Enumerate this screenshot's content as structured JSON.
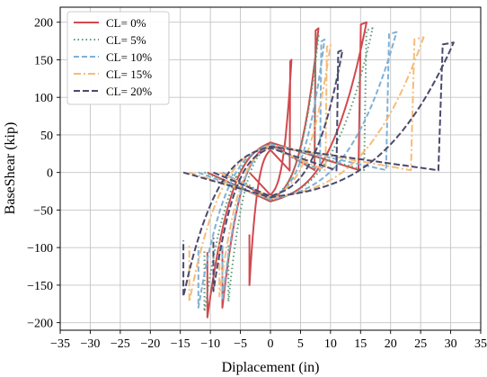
{
  "chart_data": {
    "type": "line",
    "title": "",
    "xlabel": "Diplacement (in)",
    "ylabel": "BaseShear (kip)",
    "xlim": [
      -35,
      35
    ],
    "ylim": [
      -210,
      220
    ],
    "xticks": [
      -35,
      -30,
      -25,
      -20,
      -15,
      -10,
      -5,
      0,
      5,
      10,
      15,
      20,
      25,
      30,
      35
    ],
    "yticks": [
      -200,
      -150,
      -100,
      -50,
      0,
      50,
      100,
      150,
      200
    ],
    "grid": true,
    "legend_position": "top-left",
    "series": [
      {
        "name": "CL= 0%",
        "color": "#d1494e",
        "dash": "solid",
        "loops": [
          {
            "dmax": 16,
            "dmin": -10.5,
            "fmax": 200,
            "fmin": -193
          },
          {
            "dmax": 8,
            "dmin": -8,
            "fmax": 192,
            "fmin": -180
          },
          {
            "dmax": 3.5,
            "dmin": -3.5,
            "fmax": 150,
            "fmin": -150
          }
        ]
      },
      {
        "name": "CL= 5%",
        "color": "#5b9a79",
        "dash": "dotted",
        "loops": [
          {
            "dmax": 17,
            "dmin": -11,
            "fmax": 192,
            "fmin": -185
          },
          {
            "dmax": 8,
            "dmin": -7,
            "fmax": 182,
            "fmin": -172
          }
        ]
      },
      {
        "name": "CL= 10%",
        "color": "#7fb1d7",
        "dash": "dashed",
        "loops": [
          {
            "dmax": 21,
            "dmin": -12,
            "fmax": 187,
            "fmin": -180
          },
          {
            "dmax": 9,
            "dmin": -8,
            "fmax": 177,
            "fmin": -170
          }
        ]
      },
      {
        "name": "CL= 15%",
        "color": "#f5bc78",
        "dash": "dashdot",
        "loops": [
          {
            "dmax": 25.5,
            "dmin": -13.5,
            "fmax": 180,
            "fmin": -172
          },
          {
            "dmax": 10,
            "dmin": -8.5,
            "fmax": 170,
            "fmin": -165
          }
        ]
      },
      {
        "name": "CL= 20%",
        "color": "#4a4a6e",
        "dash": "longdash",
        "loops": [
          {
            "dmax": 30.5,
            "dmin": -14.5,
            "fmax": 173,
            "fmin": -165
          },
          {
            "dmax": 12,
            "dmin": -9.5,
            "fmax": 163,
            "fmin": -158
          }
        ]
      }
    ]
  }
}
